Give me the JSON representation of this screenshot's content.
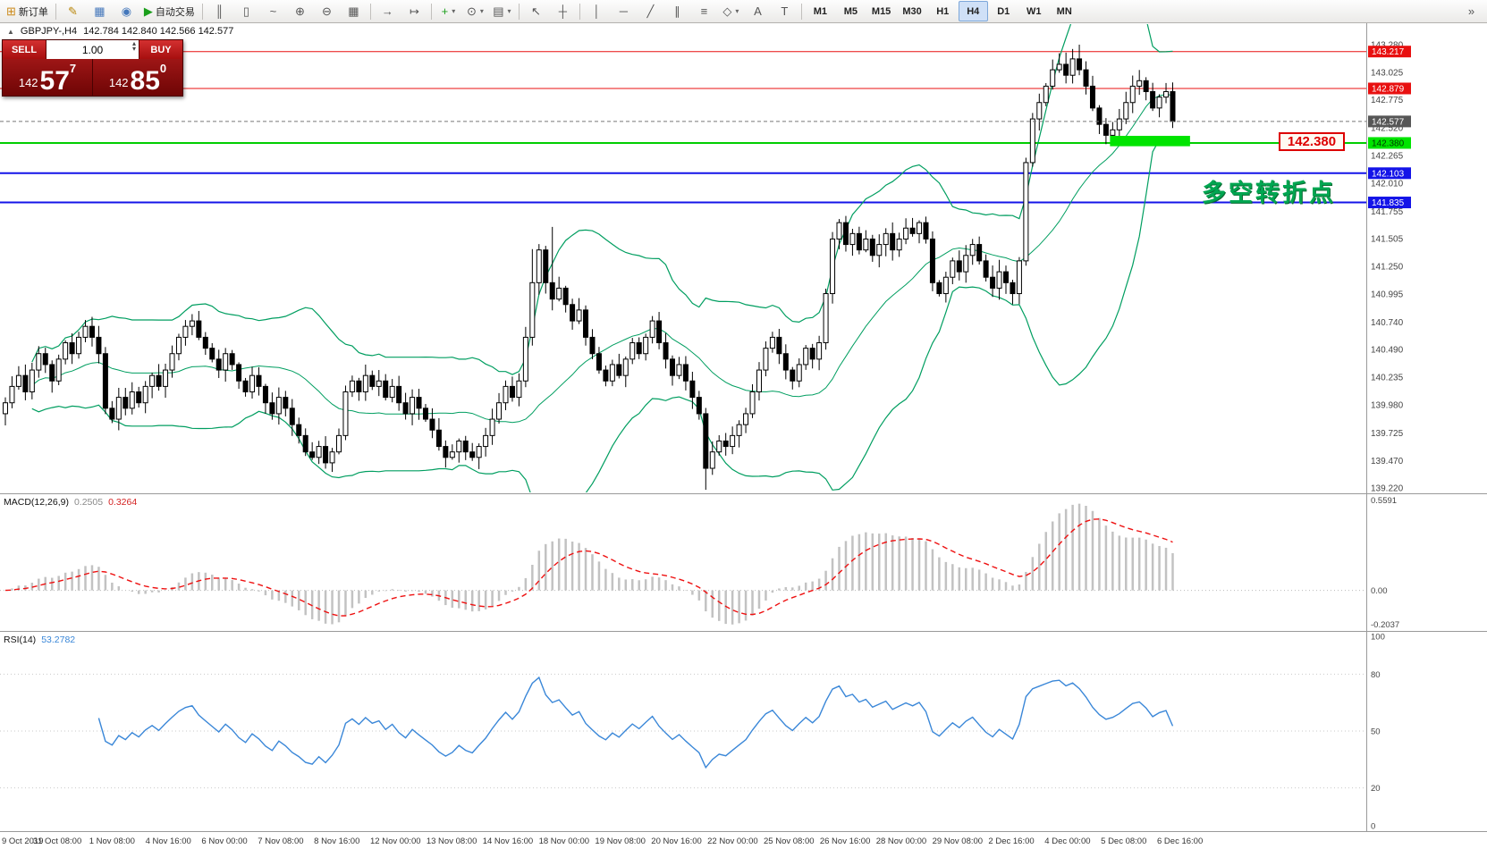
{
  "toolbar": {
    "items": [
      {
        "type": "button",
        "name": "new-order",
        "glyph": "⊞",
        "glyph_color": "#cc8a1a",
        "label": "新订单"
      },
      {
        "type": "sep"
      },
      {
        "type": "button",
        "name": "metaeditor",
        "glyph": "✎",
        "glyph_color": "#b8860b"
      },
      {
        "type": "button",
        "name": "market-watch",
        "glyph": "▦",
        "glyph_color": "#4477bb"
      },
      {
        "type": "button",
        "name": "navigator",
        "glyph": "◉",
        "glyph_color": "#4477bb"
      },
      {
        "type": "button",
        "name": "autotrading",
        "glyph": "▶",
        "glyph_color": "#1a9e1a",
        "label": "自动交易"
      },
      {
        "type": "sep"
      },
      {
        "type": "button",
        "name": "chart-bars",
        "glyph": "║"
      },
      {
        "type": "button",
        "name": "chart-candles",
        "glyph": "▯"
      },
      {
        "type": "button",
        "name": "chart-line",
        "glyph": "~"
      },
      {
        "type": "button",
        "name": "zoom-in",
        "glyph": "⊕"
      },
      {
        "type": "button",
        "name": "zoom-out",
        "glyph": "⊖"
      },
      {
        "type": "button",
        "name": "tile-windows",
        "glyph": "▦"
      },
      {
        "type": "sep"
      },
      {
        "type": "button",
        "name": "auto-scroll",
        "glyph": "→"
      },
      {
        "type": "button",
        "name": "chart-shift",
        "glyph": "↦"
      },
      {
        "type": "sep"
      },
      {
        "type": "button",
        "name": "indicators",
        "glyph": "+",
        "glyph_color": "#1a9e1a",
        "dropdown": true
      },
      {
        "type": "button",
        "name": "periods",
        "glyph": "⊙",
        "dropdown": true
      },
      {
        "type": "button",
        "name": "templates",
        "glyph": "▤",
        "dropdown": true
      },
      {
        "type": "sep"
      },
      {
        "type": "button",
        "name": "cursor",
        "glyph": "↖"
      },
      {
        "type": "button",
        "name": "crosshair",
        "glyph": "┼"
      },
      {
        "type": "sep"
      },
      {
        "type": "button",
        "name": "vertical-line",
        "glyph": "│"
      },
      {
        "type": "button",
        "name": "horizontal-line",
        "glyph": "─"
      },
      {
        "type": "button",
        "name": "trendline",
        "glyph": "╱"
      },
      {
        "type": "button",
        "name": "channel",
        "glyph": "∥"
      },
      {
        "type": "button",
        "name": "fibonacci",
        "glyph": "≡"
      },
      {
        "type": "button",
        "name": "shapes",
        "glyph": "◇",
        "dropdown": true
      },
      {
        "type": "button",
        "name": "text",
        "glyph": "A"
      },
      {
        "type": "button",
        "name": "label",
        "glyph": "T"
      },
      {
        "type": "sep"
      },
      {
        "type": "tf",
        "label": "M1"
      },
      {
        "type": "tf",
        "label": "M5"
      },
      {
        "type": "tf",
        "label": "M15"
      },
      {
        "type": "tf",
        "label": "M30"
      },
      {
        "type": "tf",
        "label": "H1"
      },
      {
        "type": "tf",
        "label": "H4",
        "active": true
      },
      {
        "type": "tf",
        "label": "D1"
      },
      {
        "type": "tf",
        "label": "W1"
      },
      {
        "type": "tf",
        "label": "MN"
      },
      {
        "type": "button",
        "name": "toolbar-overflow",
        "glyph": "»",
        "right": true
      }
    ]
  },
  "symbol_info": {
    "symbol": "GBPJPY-,H4",
    "ohlc": "142.784 142.840 142.566 142.577"
  },
  "quote_panel": {
    "sell_label": "SELL",
    "buy_label": "BUY",
    "volume": "1.00",
    "sell_price_prefix": "142",
    "sell_price_big": "57",
    "sell_price_sup": "7",
    "buy_price_prefix": "142",
    "buy_price_big": "85",
    "buy_price_sup": "0"
  },
  "annotations": {
    "price_callout": "142.380",
    "turning_point_text": "多空转折点"
  },
  "levels": {
    "lines": [
      {
        "price": 143.217,
        "color": "#e81010",
        "width": 1,
        "label": "143.217",
        "label_bg": "#e81010",
        "label_color": "#ffffff"
      },
      {
        "price": 142.879,
        "color": "#e81010",
        "width": 1,
        "label": "142.879",
        "label_bg": "#e81010",
        "label_color": "#ffffff"
      },
      {
        "price": 142.38,
        "color": "#00ce00",
        "width": 2,
        "label": "142.380",
        "label_bg": "#00e400",
        "label_color": "#003800"
      },
      {
        "price": 142.103,
        "color": "#1414e8",
        "width": 2,
        "label": "142.103",
        "label_bg": "#1414e8",
        "label_color": "#ffffff"
      },
      {
        "price": 141.835,
        "color": "#1414e8",
        "width": 2,
        "label": "141.835",
        "label_bg": "#1414e8",
        "label_color": "#ffffff"
      }
    ],
    "current": {
      "price": 142.577,
      "label": "142.577",
      "label_bg": "#565656",
      "label_color": "#ffffff"
    },
    "highlight": {
      "bar_from": 166,
      "bar_to": 178,
      "price_top": 142.445,
      "price_bot": 142.35
    }
  },
  "colors": {
    "up_candle": "#ffffff",
    "down_candle": "#000000",
    "candle_border": "#000000",
    "bollinger": "#009e60",
    "macd_hist": "#c2c2c2",
    "macd_signal": "#ee1111",
    "rsi_line": "#3a87d8",
    "highlight_green": "#00e400",
    "axis_text": "#444444"
  },
  "chart_data": {
    "type": "candlestick",
    "symbol": "GBPJPY-",
    "timeframe": "H4",
    "y_axis": {
      "max": 143.28,
      "min": 139.22,
      "ticks": [
        "143.280",
        "143.025",
        "142.775",
        "142.520",
        "142.265",
        "142.010",
        "141.755",
        "141.505",
        "141.250",
        "140.995",
        "140.740",
        "140.490",
        "140.235",
        "139.980",
        "139.725",
        "139.470",
        "139.220"
      ]
    },
    "open_first": 139.9,
    "closes": [
      140.0,
      140.15,
      140.25,
      140.1,
      140.3,
      140.45,
      140.35,
      140.2,
      140.4,
      140.55,
      140.45,
      140.6,
      140.7,
      140.6,
      140.45,
      139.95,
      139.85,
      140.05,
      139.95,
      140.1,
      140.0,
      140.15,
      140.25,
      140.15,
      140.3,
      140.45,
      140.6,
      140.7,
      140.75,
      140.6,
      140.5,
      140.4,
      140.3,
      140.45,
      140.35,
      140.2,
      140.1,
      140.25,
      140.15,
      140.0,
      139.9,
      140.05,
      139.95,
      139.8,
      139.7,
      139.55,
      139.5,
      139.6,
      139.45,
      139.55,
      139.7,
      140.1,
      140.2,
      140.1,
      140.25,
      140.15,
      140.2,
      140.05,
      140.15,
      140.0,
      139.9,
      140.05,
      139.95,
      139.85,
      139.75,
      139.6,
      139.5,
      139.55,
      139.65,
      139.55,
      139.5,
      139.6,
      139.7,
      139.85,
      140.0,
      140.15,
      140.05,
      140.2,
      140.6,
      141.1,
      141.4,
      141.1,
      140.95,
      141.05,
      140.9,
      140.75,
      140.85,
      140.6,
      140.45,
      140.3,
      140.2,
      140.35,
      140.25,
      140.4,
      140.55,
      140.45,
      140.6,
      140.75,
      140.55,
      140.4,
      140.25,
      140.35,
      140.2,
      140.05,
      139.9,
      139.4,
      139.55,
      139.65,
      139.6,
      139.7,
      139.8,
      139.9,
      140.1,
      140.3,
      140.5,
      140.6,
      140.45,
      140.3,
      140.2,
      140.35,
      140.5,
      140.4,
      140.55,
      141.0,
      141.5,
      141.65,
      141.45,
      141.55,
      141.4,
      141.5,
      141.35,
      141.45,
      141.55,
      141.4,
      141.5,
      141.6,
      141.55,
      141.65,
      141.5,
      141.1,
      141.0,
      141.15,
      141.3,
      141.2,
      141.35,
      141.45,
      141.3,
      141.15,
      141.05,
      141.2,
      141.1,
      141.0,
      141.3,
      142.2,
      142.6,
      142.75,
      142.9,
      143.05,
      143.1,
      143.0,
      143.15,
      143.05,
      142.9,
      142.7,
      142.55,
      142.45,
      142.5,
      142.6,
      142.75,
      142.9,
      142.95,
      142.85,
      142.7,
      142.8,
      142.85,
      142.577
    ],
    "time_labels": [
      "9 Oct 2019",
      "31 Oct 08:00",
      "1 Nov 08:00",
      "4 Nov 16:00",
      "6 Nov 00:00",
      "7 Nov 08:00",
      "8 Nov 16:00",
      "12 Nov 00:00",
      "13 Nov 08:00",
      "14 Nov 16:00",
      "18 Nov 00:00",
      "19 Nov 08:00",
      "20 Nov 16:00",
      "22 Nov 00:00",
      "25 Nov 08:00",
      "26 Nov 16:00",
      "28 Nov 00:00",
      "29 Nov 08:00",
      "2 Dec 16:00",
      "4 Dec 00:00",
      "5 Dec 08:00",
      "6 Dec 16:00"
    ],
    "indicators": {
      "bollinger": {
        "period": 20,
        "deviation": 2
      },
      "macd": {
        "label": "MACD(12,26,9)",
        "value_main": "0.2505",
        "value_signal": "0.3264",
        "axis_labels": [
          "0.5591",
          "0.00",
          "-0.2037"
        ],
        "axis_values": [
          0.5591,
          0.0,
          -0.2037
        ]
      },
      "rsi": {
        "label": "RSI(14)",
        "value": "53.2782",
        "axis_labels": [
          "100",
          "80",
          "50",
          "20",
          "0"
        ],
        "axis_values": [
          100,
          80,
          50,
          20,
          0
        ],
        "levels": [
          80,
          50,
          20
        ]
      }
    }
  }
}
